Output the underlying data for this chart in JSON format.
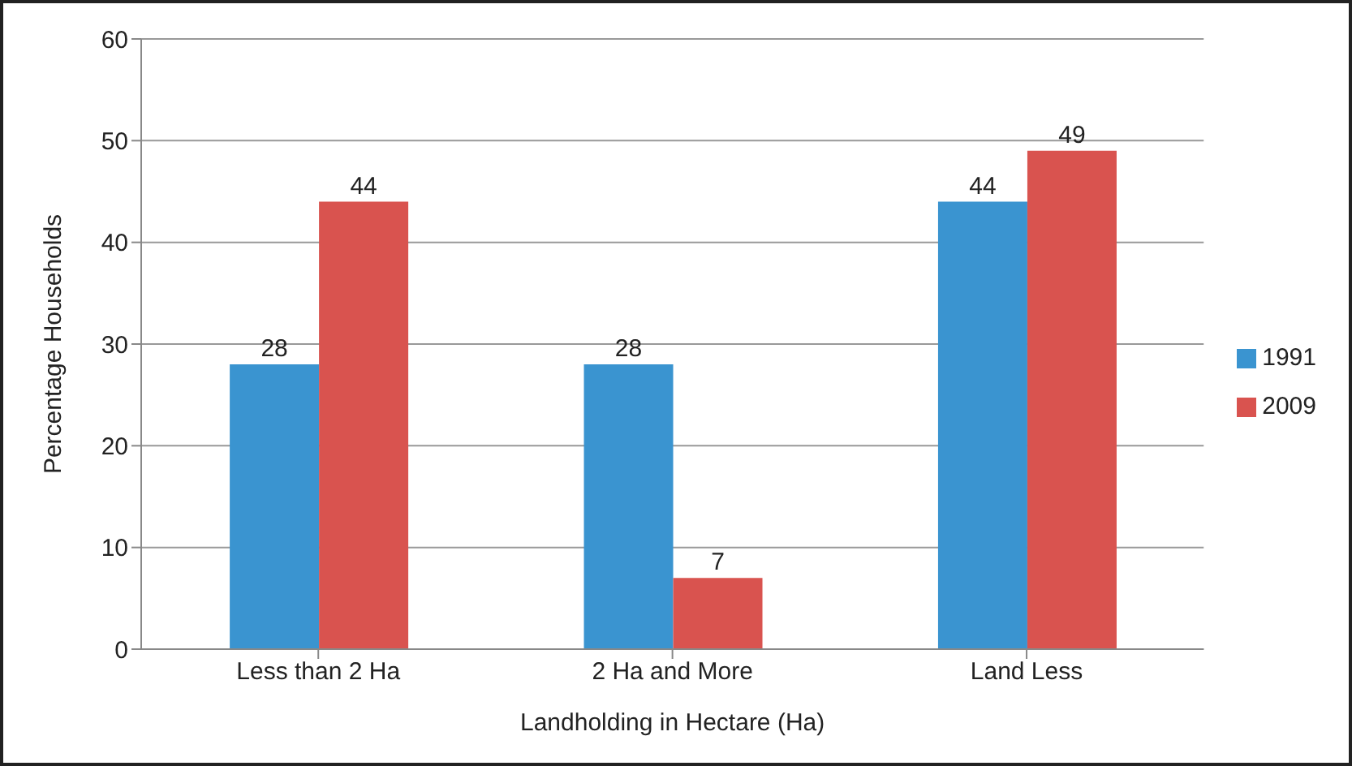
{
  "chart_data": {
    "type": "bar",
    "xlabel": "Landholding in Hectare (Ha)",
    "ylabel": "Percentage Households",
    "categories": [
      "Less than 2 Ha",
      "2 Ha and More",
      "Land Less"
    ],
    "series": [
      {
        "name": "1991",
        "color": "#3a94d0",
        "values": [
          28,
          28,
          44
        ]
      },
      {
        "name": "2009",
        "color": "#d9534f",
        "values": [
          44,
          7,
          49
        ]
      }
    ],
    "ylim": [
      0,
      60
    ],
    "yticks": [
      0,
      10,
      20,
      30,
      40,
      50,
      60
    ],
    "grid": "y",
    "legend": "right",
    "data_labels": true
  }
}
